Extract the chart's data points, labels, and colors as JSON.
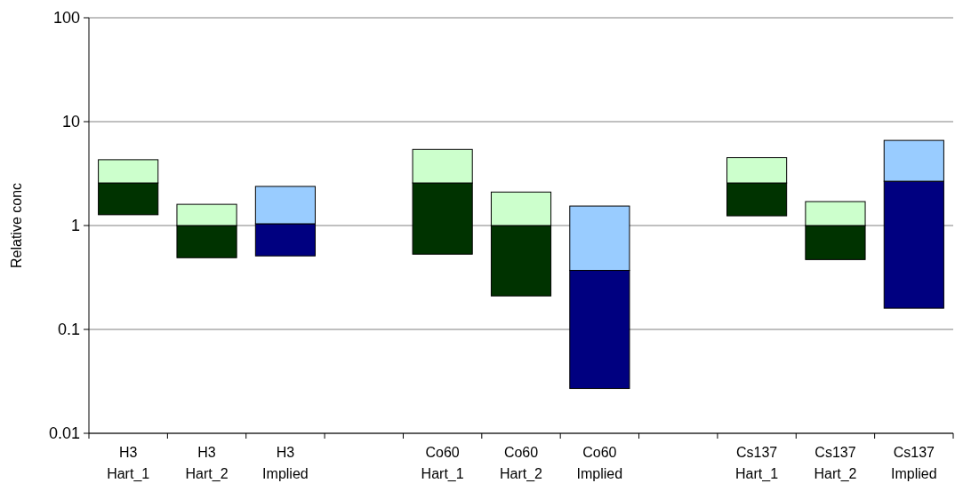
{
  "chart_data": {
    "type": "bar",
    "ylabel": "Relative conc",
    "log": true,
    "grid": "y",
    "ylim": [
      0.01,
      100
    ],
    "yticks": [
      0.01,
      0.1,
      1,
      10,
      100
    ],
    "categories": [
      "H3 Hart_1",
      "H3 Hart_2",
      "H3 Implied",
      null,
      "Co60 Hart_1",
      "Co60 Hart_2",
      "Co60 Implied",
      null,
      "Cs137 Hart_1",
      "Cs137 Hart_2",
      "Cs137 Implied"
    ],
    "series": [
      {
        "colors": [
          "#003300",
          "#003300",
          "#000080",
          null,
          "#003300",
          "#003300",
          "#000080",
          null,
          "#003300",
          "#003300",
          "#000080"
        ],
        "base": [
          1.27,
          0.49,
          0.51,
          null,
          0.53,
          0.21,
          0.027,
          null,
          1.24,
          0.47,
          0.16
        ],
        "values": [
          1.3,
          0.51,
          0.53,
          null,
          2.04,
          0.79,
          0.343,
          null,
          1.33,
          0.53,
          2.51
        ]
      },
      {
        "colors": [
          "#ccffcc",
          "#ccffcc",
          "#99ccff",
          null,
          "#ccffcc",
          "#ccffcc",
          "#99ccff",
          null,
          "#ccffcc",
          "#ccffcc",
          "#99ccff"
        ],
        "base": [
          2.57,
          1,
          1.04,
          null,
          2.57,
          1,
          0.37,
          null,
          2.57,
          1,
          2.67
        ],
        "values": [
          1.73,
          0.6,
          1.34,
          null,
          2.83,
          1.1,
          1.17,
          null,
          1.93,
          0.7,
          3.93
        ]
      }
    ]
  }
}
